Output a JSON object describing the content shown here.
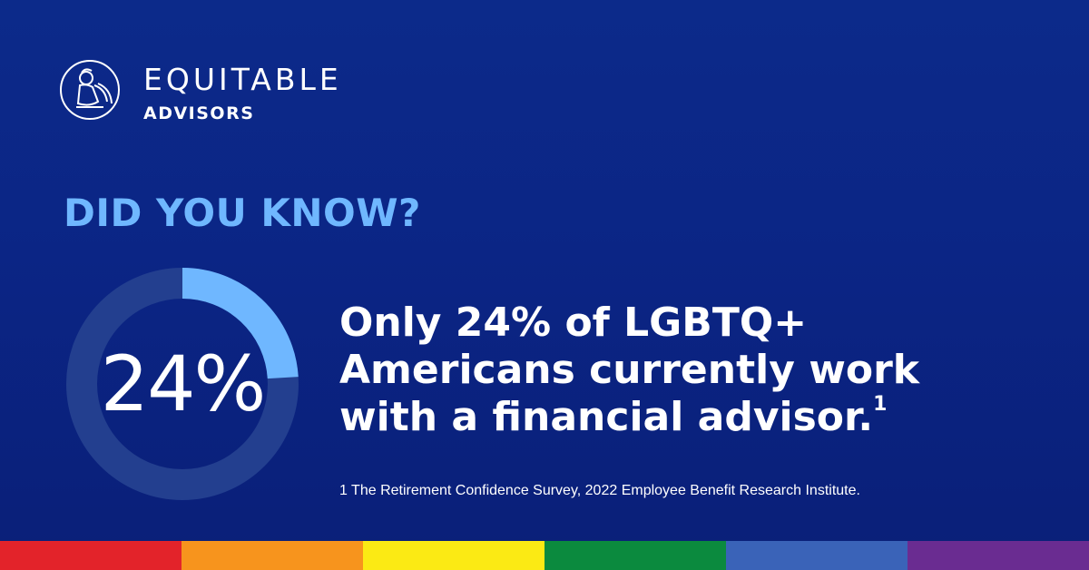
{
  "brand": {
    "name": "EQUITABLE",
    "sub": "ADVISORS",
    "logo_icon": "statue-emblem-icon"
  },
  "eyebrow": "DID YOU KNOW?",
  "stat": {
    "value_label": "24%",
    "fraction": 0.24,
    "ring_fill_color": "#6fb7ff",
    "ring_track_color": "#233f8f"
  },
  "headline": {
    "line1": "Only 24% of LGBTQ+",
    "line2": "Americans currently work",
    "line3": "with a financial advisor.",
    "footnote_ref": "1"
  },
  "footnote": "1 The Retirement Confidence Survey, 2022 Employee Benefit Research Institute.",
  "pride_stripe": [
    "#e3232a",
    "#f7941d",
    "#fbea14",
    "#0b8a3e",
    "#3a63b8",
    "#6a2c91"
  ]
}
